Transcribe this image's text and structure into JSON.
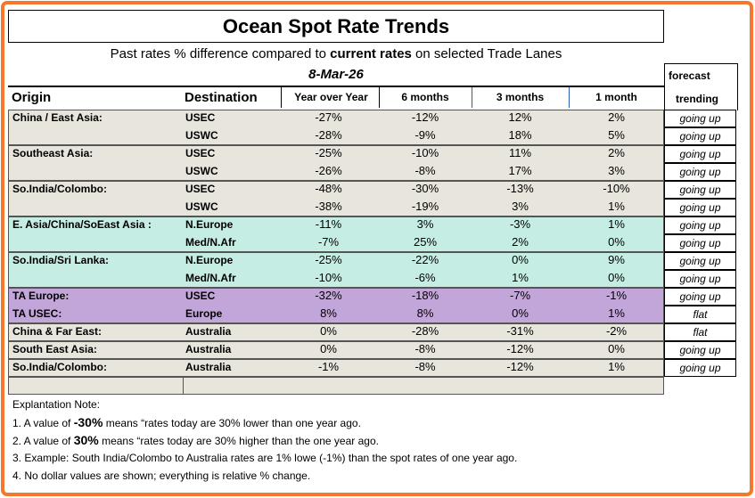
{
  "title": "Ocean Spot Rate Trends",
  "subtitle": {
    "pre": "Past rates % difference compared to ",
    "bold": "current  rates",
    "post": "  on selected Trade Lanes"
  },
  "date": "8-Mar-26",
  "forecast_header": {
    "line1": "forecast",
    "line2": "trending"
  },
  "columns": {
    "origin": "Origin",
    "destination": "Destination",
    "yoy": "Year over Year",
    "m6": "6 months",
    "m3": "3 months",
    "m1": "1 month"
  },
  "colors": {
    "border": "#f4792a",
    "gray": "#e8e6dc",
    "teal": "#c6ede3",
    "purple": "#c3a6d9"
  },
  "rows": [
    {
      "origin": "China / East Asia:",
      "dest": "USEC",
      "yoy": "-27%",
      "m6": "-12%",
      "m3": "12%",
      "m1": "2%",
      "forecast": "going up"
    },
    {
      "origin": "",
      "dest": "USWC",
      "yoy": "-28%",
      "m6": "-9%",
      "m3": "18%",
      "m1": "5%",
      "forecast": "going up"
    },
    {
      "origin": "Southeast Asia:",
      "dest": "USEC",
      "yoy": "-25%",
      "m6": "-10%",
      "m3": "11%",
      "m1": "2%",
      "forecast": "going up"
    },
    {
      "origin": "",
      "dest": "USWC",
      "yoy": "-26%",
      "m6": "-8%",
      "m3": "17%",
      "m1": "3%",
      "forecast": "going up"
    },
    {
      "origin": "So.India/Colombo:",
      "dest": "USEC",
      "yoy": "-48%",
      "m6": "-30%",
      "m3": "-13%",
      "m1": "-10%",
      "forecast": "going up"
    },
    {
      "origin": "",
      "dest": "USWC",
      "yoy": "-38%",
      "m6": "-19%",
      "m3": "3%",
      "m1": "1%",
      "forecast": "going up"
    },
    {
      "origin": "E. Asia/China/SoEast Asia :",
      "dest": "N.Europe",
      "yoy": "-11%",
      "m6": "3%",
      "m3": "-3%",
      "m1": "1%",
      "forecast": "going up"
    },
    {
      "origin": "",
      "dest": "Med/N.Afr",
      "yoy": "-7%",
      "m6": "25%",
      "m3": "2%",
      "m1": "0%",
      "forecast": "going up"
    },
    {
      "origin": "So.India/Sri Lanka:",
      "dest": "N.Europe",
      "yoy": "-25%",
      "m6": "-22%",
      "m3": "0%",
      "m1": "9%",
      "forecast": "going up"
    },
    {
      "origin": "",
      "dest": "Med/N.Afr",
      "yoy": "-10%",
      "m6": "-6%",
      "m3": "1%",
      "m1": "0%",
      "forecast": "going up"
    },
    {
      "origin": "TA Europe:",
      "dest": "USEC",
      "yoy": "-32%",
      "m6": "-18%",
      "m3": "-7%",
      "m1": "-1%",
      "forecast": "going up"
    },
    {
      "origin": "TA USEC:",
      "dest": "Europe",
      "yoy": "8%",
      "m6": "8%",
      "m3": "0%",
      "m1": "1%",
      "forecast": "flat"
    },
    {
      "origin": "China & Far East:",
      "dest": "Australia",
      "yoy": "0%",
      "m6": "-28%",
      "m3": "-31%",
      "m1": "-2%",
      "forecast": "flat"
    },
    {
      "origin": "South East Asia:",
      "dest": "Australia",
      "yoy": "0%",
      "m6": "-8%",
      "m3": "-12%",
      "m1": "0%",
      "forecast": "going up"
    },
    {
      "origin": "So.India/Colombo:",
      "dest": "Australia",
      "yoy": "-1%",
      "m6": "-8%",
      "m3": "-12%",
      "m1": "1%",
      "forecast": "going up"
    }
  ],
  "notes": {
    "heading": "Explantation Note:",
    "n1_pre": "1. A value of ",
    "n1_bold": "-30%",
    "n1_post": " means “rates today are 30% lower than one year ago.",
    "n2_pre": "2. A value of  ",
    "n2_bold": "30%",
    "n2_post": "  means “rates today are  30% higher than the one year ago.",
    "n3": "3.  Example:  South India/Colombo to Australia rates are  1% lowe (-1%) than the spot rates of one year ago.",
    "n4": "4. No dollar values are shown; everything is relative % change."
  }
}
